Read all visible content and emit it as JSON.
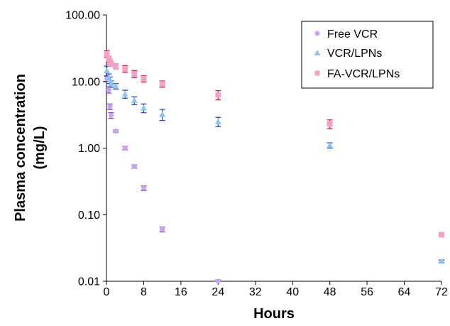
{
  "chart_data": {
    "type": "scatter",
    "xlabel": "Hours",
    "ylabel_lines": [
      "Plasma concentration",
      "(mg/L)"
    ],
    "xlim": [
      0,
      72
    ],
    "ylim": [
      0.01,
      100
    ],
    "yscale": "log",
    "x_ticks": [
      "0",
      "8",
      "16",
      "24",
      "32",
      "40",
      "48",
      "56",
      "64",
      "72"
    ],
    "y_ticks": [
      "0.01",
      "0.10",
      "1.00",
      "10.00",
      "100.00"
    ],
    "grid": false,
    "legend_position": "top-right",
    "series": [
      {
        "name": "Free VCR",
        "marker": "circle",
        "color": "#c9a3ee",
        "error_color": "#7d3cc8",
        "points": [
          {
            "x": 0.083,
            "y": 11.0,
            "err": 1.2
          },
          {
            "x": 0.5,
            "y": 7.5,
            "err": 0.8
          },
          {
            "x": 0.75,
            "y": 4.2,
            "err": 0.4
          },
          {
            "x": 1,
            "y": 3.1,
            "err": 0.3
          },
          {
            "x": 2,
            "y": 1.8,
            "err": 0.08
          },
          {
            "x": 4,
            "y": 1.0,
            "err": 0.06
          },
          {
            "x": 6,
            "y": 0.53,
            "err": 0.03
          },
          {
            "x": 8,
            "y": 0.25,
            "err": 0.02
          },
          {
            "x": 12,
            "y": 0.06,
            "err": 0.005
          },
          {
            "x": 24,
            "y": 0.01,
            "err": 0.0005
          }
        ]
      },
      {
        "name": "VCR/LPNs",
        "marker": "triangle",
        "color": "#8ec5f0",
        "error_color": "#1f3fbf",
        "points": [
          {
            "x": 0.083,
            "y": 14.5,
            "err": 2.5
          },
          {
            "x": 0.5,
            "y": 11.5,
            "err": 1.5
          },
          {
            "x": 0.75,
            "y": 10.5,
            "err": 1.2
          },
          {
            "x": 1,
            "y": 9.2,
            "err": 1.0
          },
          {
            "x": 2,
            "y": 8.5,
            "err": 0.8
          },
          {
            "x": 4,
            "y": 6.5,
            "err": 0.9
          },
          {
            "x": 6,
            "y": 5.2,
            "err": 0.7
          },
          {
            "x": 8,
            "y": 4.0,
            "err": 0.6
          },
          {
            "x": 12,
            "y": 3.2,
            "err": 0.6
          },
          {
            "x": 24,
            "y": 2.5,
            "err": 0.4
          },
          {
            "x": 48,
            "y": 1.1,
            "err": 0.1
          },
          {
            "x": 72,
            "y": 0.02,
            "err": 0.0008
          }
        ]
      },
      {
        "name": "FA-VCR/LPNs",
        "marker": "square",
        "color": "#f2a2c6",
        "error_color": "#d21f2b",
        "points": [
          {
            "x": 0.083,
            "y": 26.0,
            "err": 3.0
          },
          {
            "x": 0.5,
            "y": 22.0,
            "err": 2.0
          },
          {
            "x": 0.75,
            "y": 20.0,
            "err": 1.8
          },
          {
            "x": 1,
            "y": 18.5,
            "err": 1.5
          },
          {
            "x": 2,
            "y": 17.0,
            "err": 1.5
          },
          {
            "x": 4,
            "y": 15.5,
            "err": 1.8
          },
          {
            "x": 6,
            "y": 13.0,
            "err": 1.6
          },
          {
            "x": 8,
            "y": 11.0,
            "err": 1.2
          },
          {
            "x": 12,
            "y": 9.2,
            "err": 1.0
          },
          {
            "x": 24,
            "y": 6.3,
            "err": 1.0
          },
          {
            "x": 48,
            "y": 2.3,
            "err": 0.35
          },
          {
            "x": 72,
            "y": 0.05,
            "err": 0.0
          }
        ]
      }
    ]
  }
}
